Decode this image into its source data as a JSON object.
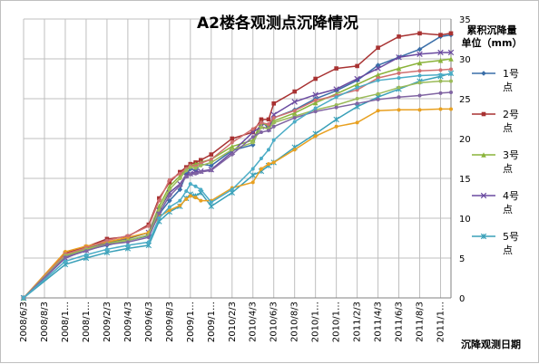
{
  "chart_data": {
    "type": "line",
    "title": "A2楼各观测点沉降情况",
    "ylabel_line1": "累积沉降量",
    "ylabel_line2": "单位（mm）",
    "xlabel": "沉降观测日期",
    "ylim": [
      0,
      35
    ],
    "yticks": [
      0,
      5,
      10,
      15,
      20,
      25,
      30,
      35
    ],
    "grid": true,
    "legend_position": "right",
    "x_tick_labels": [
      "2008/6/3",
      "2008/8/3",
      "2008/1…",
      "2008/1…",
      "2009/2/3",
      "2009/4/3",
      "2009/6/3",
      "2009/8/3",
      "2009/1…",
      "2009/1…",
      "2010/2/3",
      "2010/4/3",
      "2010/6/3",
      "2010/8/3",
      "2010/1…",
      "2010/1…",
      "2011/2/3",
      "2011/4/3",
      "2011/6/3",
      "2011/8/3",
      "2011/1…"
    ],
    "x_tick_values": [
      0,
      2,
      4,
      6,
      8,
      10,
      12,
      14,
      16,
      18,
      20,
      22,
      24,
      26,
      28,
      30,
      32,
      34,
      36,
      38,
      40
    ],
    "x_max": 41,
    "legend": [
      {
        "line1": "1号",
        "line2": "点",
        "color": "#3a6ea8",
        "marker": "diamond"
      },
      {
        "line1": "2号",
        "line2": "点",
        "color": "#a83232",
        "marker": "square"
      },
      {
        "line1": "3号",
        "line2": "点",
        "color": "#8ab33a",
        "marker": "triangle"
      },
      {
        "line1": "4号",
        "line2": "点",
        "color": "#6a4aa0",
        "marker": "x"
      },
      {
        "line1": "5号",
        "line2": "点",
        "color": "#3aa0b8",
        "marker": "star"
      }
    ],
    "series": [
      {
        "name": "1号点",
        "color": "#3a6ea8",
        "marker": "diamond",
        "x": [
          0,
          4,
          6,
          8,
          10,
          12,
          13,
          14,
          15,
          15.6,
          16,
          16.5,
          17,
          18,
          20,
          22,
          22.8,
          23.5,
          24,
          26,
          28,
          30,
          32,
          34,
          36,
          38,
          40,
          41
        ],
        "y": [
          0,
          5.2,
          6,
          6.6,
          7.2,
          7.8,
          10.5,
          12.2,
          13.6,
          15.5,
          16.2,
          16,
          16.8,
          16.6,
          18.5,
          19.2,
          22.2,
          21.3,
          22.6,
          23.6,
          25,
          26,
          27.3,
          29.2,
          30.2,
          31.2,
          32.8,
          33
        ]
      },
      {
        "name": "2号点",
        "color": "#a83232",
        "marker": "square",
        "x": [
          0,
          4,
          6,
          8,
          10,
          12,
          13,
          14,
          15,
          15.6,
          16,
          16.5,
          17,
          18,
          20,
          22,
          22.8,
          23.5,
          24,
          26,
          28,
          30,
          32,
          34,
          36,
          38,
          40,
          41
        ],
        "y": [
          0,
          5.6,
          6.4,
          7.4,
          7.7,
          9.2,
          12.5,
          14.5,
          15.8,
          16.4,
          16.8,
          17,
          17.3,
          18,
          20,
          20.8,
          22.4,
          22.4,
          24.4,
          25.9,
          27.5,
          28.8,
          29.1,
          31.4,
          32.8,
          33.2,
          33,
          33.2
        ]
      },
      {
        "name": "3号点",
        "color": "#8ab33a",
        "marker": "triangle",
        "x": [
          0,
          4,
          6,
          8,
          10,
          12,
          13,
          14,
          15,
          15.6,
          16,
          16.5,
          17,
          18,
          20,
          22,
          22.8,
          23.5,
          24,
          26,
          28,
          30,
          32,
          34,
          36,
          38,
          40,
          41
        ],
        "y": [
          0,
          5.4,
          6.2,
          6.9,
          7.4,
          8.2,
          11.5,
          14,
          15.3,
          16.2,
          16.6,
          16.8,
          17,
          17.4,
          19,
          19.8,
          22,
          21.6,
          22.2,
          23.2,
          24.5,
          25.6,
          26.8,
          28,
          28.8,
          29.5,
          29.8,
          30
        ]
      },
      {
        "name": "4号点",
        "color": "#6a4aa0",
        "marker": "x",
        "x": [
          0,
          4,
          6,
          8,
          10,
          12,
          13,
          14,
          15,
          15.6,
          16,
          16.5,
          17,
          18,
          20,
          22,
          22.8,
          23.5,
          24,
          26,
          28,
          30,
          32,
          34,
          36,
          38,
          40,
          41
        ],
        "y": [
          0,
          5,
          6,
          7,
          7.5,
          8.2,
          11,
          13.2,
          14.3,
          15.4,
          15.6,
          15.8,
          15.9,
          16.1,
          18.3,
          20.8,
          21.5,
          21.2,
          23,
          24.6,
          25.5,
          26.2,
          27.5,
          28.8,
          30.2,
          30.6,
          30.8,
          30.8
        ]
      },
      {
        "name": "5号点",
        "color": "#3aa0b8",
        "marker": "star",
        "x": [
          0,
          4,
          6,
          8,
          10,
          12,
          13,
          14,
          15,
          15.6,
          16,
          16.5,
          17,
          18,
          20,
          22,
          22.8,
          23.5,
          24,
          26,
          28,
          30,
          32,
          34,
          36,
          38,
          40,
          41
        ],
        "y": [
          0,
          4.2,
          5,
          5.7,
          6.2,
          6.6,
          9.6,
          10.8,
          11.5,
          12.5,
          13,
          12.8,
          13.2,
          11.5,
          13.2,
          15.4,
          15.9,
          16.6,
          17,
          18.9,
          20.6,
          22.4,
          24,
          25.2,
          26.2,
          27.2,
          27.8,
          28.2
        ]
      },
      {
        "name": "",
        "color": "#e8a020",
        "marker": "circle",
        "x": [
          0,
          4,
          6,
          8,
          10,
          12,
          13,
          14,
          15,
          15.6,
          16,
          16.5,
          17,
          18,
          20,
          22,
          22.8,
          23.5,
          24,
          26,
          28,
          30,
          32,
          34,
          36,
          38,
          40,
          41
        ],
        "y": [
          0,
          5.8,
          6.5,
          7,
          7.6,
          8.2,
          10.2,
          11,
          11.6,
          12.4,
          12.8,
          12.6,
          12.2,
          12.2,
          13.8,
          14.5,
          16.2,
          16.8,
          17,
          18.6,
          20.3,
          21.5,
          22,
          23.5,
          23.6,
          23.6,
          23.7,
          23.7
        ]
      },
      {
        "name": "",
        "color": "#d07070",
        "marker": "circle",
        "x": [
          0,
          4,
          6,
          8,
          10,
          12,
          13,
          14,
          15,
          15.6,
          16,
          16.5,
          17,
          18,
          20,
          22,
          22.8,
          23.5,
          24,
          26,
          28,
          30,
          32,
          34,
          36,
          38,
          40,
          41
        ],
        "y": [
          0,
          5.5,
          6.3,
          7.2,
          7.8,
          9,
          12.2,
          14.8,
          15.6,
          16.2,
          16.6,
          16.5,
          16.9,
          17.4,
          19.5,
          21.2,
          22,
          21.8,
          22.6,
          23.5,
          24.8,
          25.4,
          26.1,
          27.6,
          28.2,
          28.5,
          28.6,
          28.7
        ]
      },
      {
        "name": "",
        "color": "#9bbb59",
        "marker": "circle",
        "x": [
          0,
          4,
          6,
          8,
          10,
          12,
          13,
          14,
          15,
          15.6,
          16,
          16.5,
          17,
          18,
          20,
          22,
          22.8,
          23.5,
          24,
          26,
          28,
          30,
          32,
          34,
          36,
          38,
          40,
          41
        ],
        "y": [
          0,
          5.3,
          6.1,
          6.8,
          7.2,
          7.9,
          11,
          13.6,
          15,
          16,
          16.4,
          16.3,
          16.6,
          17,
          18.6,
          19.5,
          21.4,
          21.2,
          22,
          22.8,
          23.6,
          24.2,
          25,
          25.6,
          26.4,
          27,
          27.2,
          27.2
        ]
      },
      {
        "name": "",
        "color": "#8064a2",
        "marker": "circle",
        "x": [
          0,
          4,
          6,
          8,
          10,
          12,
          13,
          14,
          15,
          15.6,
          16,
          16.5,
          17,
          18,
          20,
          22,
          22.8,
          23.5,
          24,
          26,
          28,
          30,
          32,
          34,
          36,
          38,
          40,
          41
        ],
        "y": [
          0,
          5.1,
          5.9,
          6.7,
          7,
          7.6,
          10.6,
          12.8,
          14.1,
          15.2,
          15.5,
          15.6,
          15.8,
          16,
          18,
          20.2,
          20.8,
          21,
          21.5,
          22.6,
          23.4,
          23.9,
          24.4,
          24.9,
          25.2,
          25.4,
          25.7,
          25.8
        ]
      },
      {
        "name": "",
        "color": "#4bacc6",
        "marker": "circle",
        "x": [
          0,
          4,
          6,
          8,
          10,
          12,
          13,
          14,
          15,
          15.6,
          16,
          16.5,
          17,
          18,
          20,
          22,
          22.8,
          23.5,
          24,
          26,
          28,
          30,
          32,
          34,
          36,
          38,
          40,
          41
        ],
        "y": [
          0,
          4.6,
          5.4,
          6.1,
          6.6,
          7,
          10,
          11.4,
          12.2,
          13.4,
          14.3,
          14,
          13.6,
          12,
          13.6,
          16.2,
          17.5,
          18.6,
          19.8,
          22.1,
          23.8,
          25.2,
          26.4,
          27.3,
          27.6,
          27.9,
          28,
          28.1
        ]
      }
    ]
  }
}
